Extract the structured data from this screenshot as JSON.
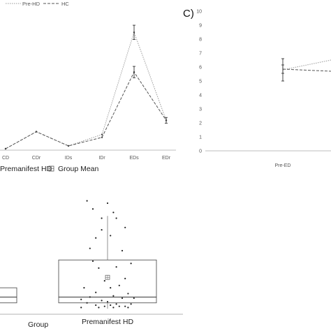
{
  "chart_data": [
    {
      "type": "line",
      "categories": [
        "CD",
        "CDr",
        "IDs",
        "IDr",
        "EDs",
        "EDr"
      ],
      "legend": [
        "Pre-HD",
        "HC"
      ],
      "legend_placement": "top-left",
      "series": [
        {
          "name": "Pre-HD",
          "values": [
            0.0,
            0.6,
            0.1,
            0.5,
            4.1,
            1.0
          ],
          "err": [
            0,
            0,
            0,
            0,
            0.25,
            0
          ]
        },
        {
          "name": "HC",
          "values": [
            0.0,
            0.6,
            0.1,
            0.4,
            2.7,
            1.0
          ],
          "err": [
            0,
            0,
            0,
            0,
            0.2,
            0.1
          ]
        }
      ],
      "ylim": [
        0,
        4.5
      ]
    },
    {
      "type": "line",
      "panel_label": "C)",
      "categories": [
        "Pre-ED"
      ],
      "yticks": [
        "0",
        "1",
        "2",
        "3",
        "4",
        "5",
        "6",
        "7",
        "8",
        "9",
        "10"
      ],
      "ylim": [
        0,
        10
      ],
      "series": [
        {
          "values": [
            5.8
          ],
          "err": [
            0.8
          ],
          "x_end": 6.5
        },
        {
          "values": [
            5.85
          ],
          "err": [
            0.3
          ],
          "x_end": 5.7
        }
      ]
    },
    {
      "type": "box",
      "legend": [
        "Premanifest HD",
        "Group Mean"
      ],
      "xlabel": "Group",
      "categories": [
        "Premanifest HD"
      ],
      "box": {
        "min": 0,
        "q1": 0.5,
        "median": 1.0,
        "q3": 4.2,
        "max": 8.0,
        "mean": 2.7
      },
      "left_box": {
        "q1": 0.5,
        "median": 1.0,
        "q3": 1.8
      },
      "points": [
        [
          -0.7,
          9.3
        ],
        [
          0.0,
          9.1
        ],
        [
          -0.5,
          8.6
        ],
        [
          0.2,
          8.3
        ],
        [
          -0.2,
          7.8
        ],
        [
          0.3,
          7.8
        ],
        [
          -0.4,
          6.1
        ],
        [
          -0.2,
          6.8
        ],
        [
          0.6,
          7.0
        ],
        [
          0.1,
          6.3
        ],
        [
          -0.6,
          5.2
        ],
        [
          0.5,
          5.0
        ],
        [
          -0.5,
          4.1
        ],
        [
          0.3,
          3.6
        ],
        [
          0.8,
          3.9
        ],
        [
          -0.3,
          3.5
        ],
        [
          -0.1,
          2.4
        ],
        [
          0.6,
          2.6
        ],
        [
          -0.8,
          1.8
        ],
        [
          0.1,
          1.8
        ],
        [
          0.4,
          2.0
        ],
        [
          -0.4,
          1.4
        ],
        [
          0.7,
          1.3
        ],
        [
          -0.6,
          1.0
        ],
        [
          0.2,
          1.1
        ],
        [
          -0.2,
          0.7
        ],
        [
          0.5,
          0.9
        ],
        [
          -0.7,
          0.5
        ],
        [
          0.0,
          0.6
        ],
        [
          0.3,
          0.4
        ],
        [
          -0.4,
          0.3
        ],
        [
          0.8,
          0.4
        ],
        [
          -0.1,
          0.2
        ],
        [
          0.6,
          0.2
        ],
        [
          -0.9,
          0.1
        ],
        [
          0.2,
          0.1
        ],
        [
          0.9,
          0.9
        ],
        [
          -0.9,
          0.8
        ],
        [
          0.1,
          0.3
        ],
        [
          -0.3,
          0.1
        ],
        [
          0.4,
          0.2
        ],
        [
          0.7,
          0.1
        ]
      ],
      "ylim": [
        0,
        10
      ]
    }
  ],
  "colors": {
    "prehd_line": "#9a9a9a",
    "hc_line": "#555555",
    "box": "#555555",
    "markers": "#222222"
  }
}
